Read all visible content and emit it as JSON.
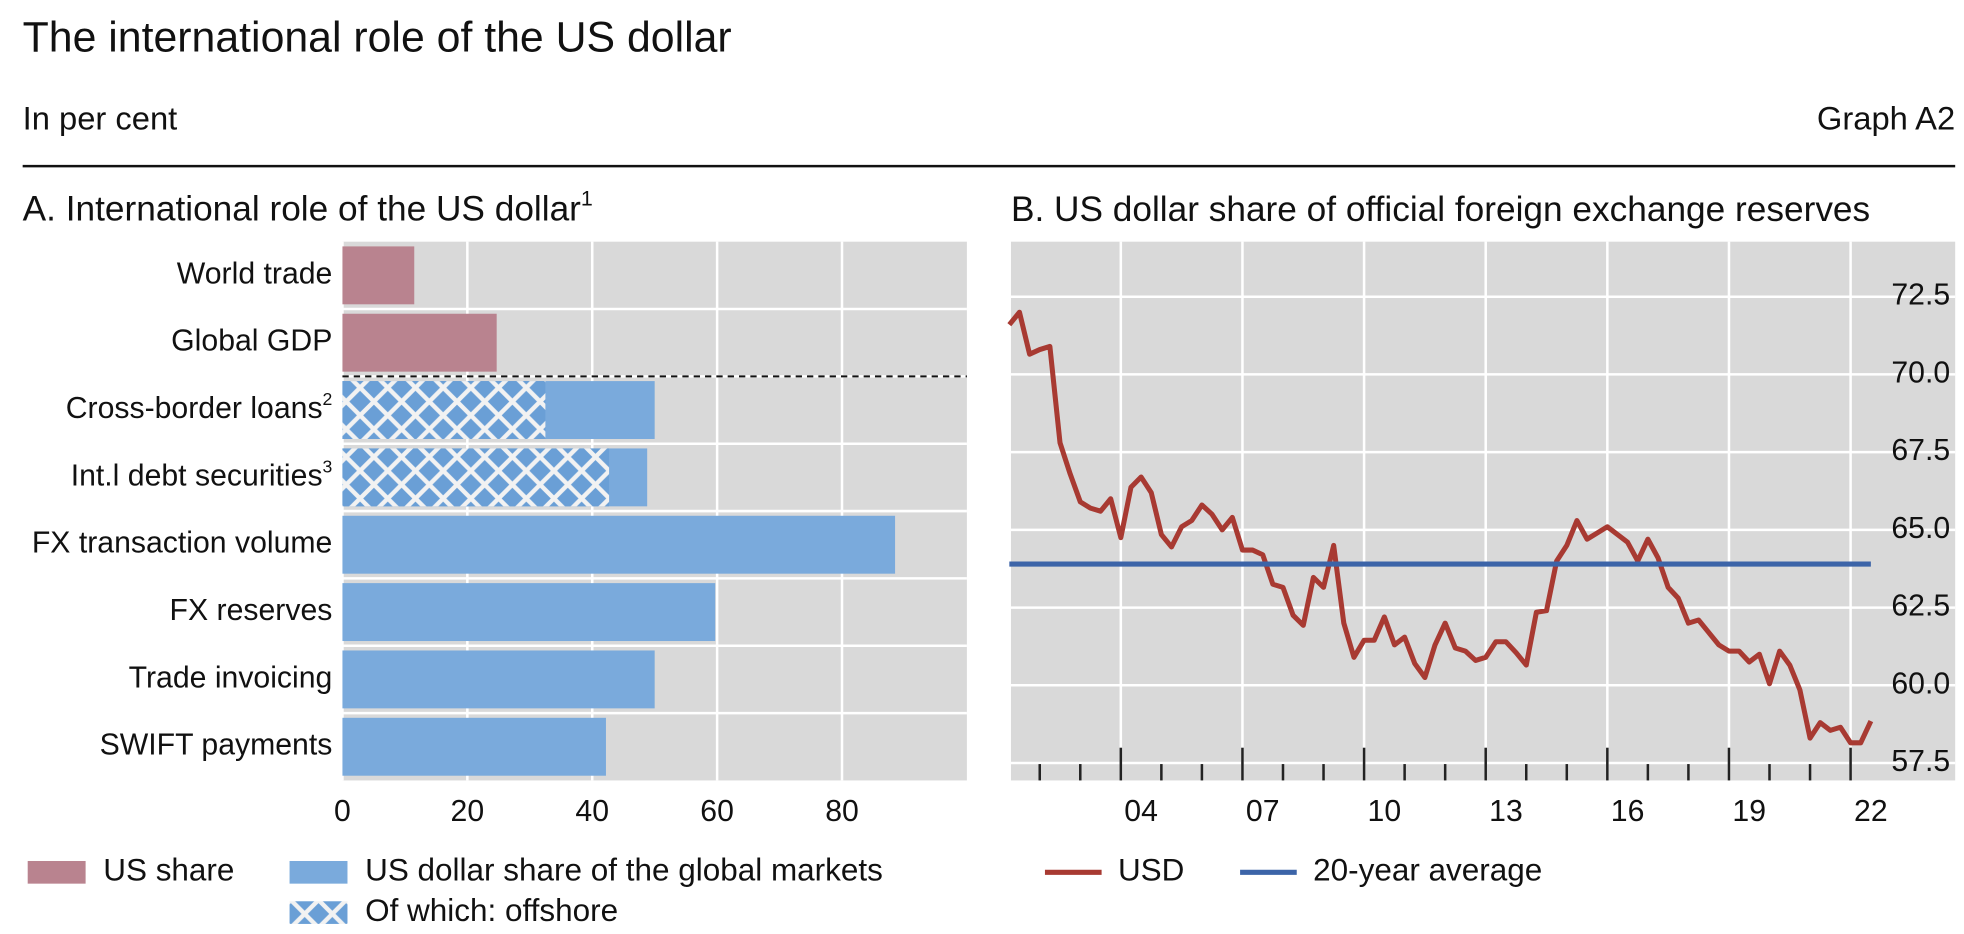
{
  "header": {
    "title": "The international role of the US dollar",
    "subtitle": "In per cent",
    "graph_id": "Graph A2"
  },
  "chart_data": [
    {
      "type": "bar",
      "orientation": "horizontal",
      "title": "A. International role of the US dollar",
      "title_note": "1",
      "categories": [
        "World trade",
        "Global GDP",
        "Cross-border loans",
        "Int.l debt securities",
        "FX transaction volume",
        "FX reserves",
        "Trade invoicing",
        "SWIFT payments"
      ],
      "category_notes": [
        null,
        null,
        "2",
        "3",
        null,
        null,
        null,
        null
      ],
      "series": [
        {
          "name": "US share",
          "color": "#b9838f",
          "values": [
            11.5,
            24.7,
            null,
            null,
            null,
            null,
            null,
            null
          ]
        },
        {
          "name": "US dollar share of the global markets",
          "color": "#7aaadc",
          "values": [
            null,
            null,
            50,
            48.8,
            88.5,
            59.7,
            50,
            42.2
          ]
        },
        {
          "name": "Of which: offshore",
          "color": "#6a9fd6",
          "pattern": "crosshatch",
          "values": [
            null,
            null,
            32.5,
            42.7,
            null,
            null,
            null,
            null
          ]
        }
      ],
      "xlim": [
        0,
        100
      ],
      "xticks": [
        0,
        20,
        40,
        60,
        80
      ],
      "grid": true,
      "legend": "bottom"
    },
    {
      "type": "line",
      "title": "B. US dollar share of official foreign exchange reserves",
      "series": [
        {
          "name": "USD",
          "color": "#a83a32",
          "x": [
            2001.25,
            2001.5,
            2001.75,
            2002,
            2002.25,
            2002.5,
            2002.75,
            2003,
            2003.25,
            2003.5,
            2003.75,
            2004,
            2004.25,
            2004.5,
            2004.75,
            2005,
            2005.25,
            2005.5,
            2005.75,
            2006,
            2006.25,
            2006.5,
            2006.75,
            2007,
            2007.25,
            2007.5,
            2007.75,
            2008,
            2008.25,
            2008.5,
            2008.75,
            2009,
            2009.25,
            2009.5,
            2009.75,
            2010,
            2010.25,
            2010.5,
            2010.75,
            2011,
            2011.25,
            2011.5,
            2011.75,
            2012,
            2012.25,
            2012.5,
            2012.75,
            2013,
            2013.25,
            2013.5,
            2013.75,
            2014,
            2014.25,
            2014.5,
            2014.75,
            2015,
            2015.25,
            2015.5,
            2015.75,
            2016,
            2016.25,
            2016.5,
            2016.75,
            2017,
            2017.25,
            2017.5,
            2017.75,
            2018,
            2018.25,
            2018.5,
            2018.75,
            2019,
            2019.25,
            2019.5,
            2019.75,
            2020,
            2020.25,
            2020.5,
            2020.75,
            2021,
            2021.25,
            2021.5,
            2021.75,
            2022,
            2022.25,
            2022.5
          ],
          "values": [
            71.6,
            72.0,
            70.65,
            70.8,
            70.9,
            67.8,
            66.8,
            65.9,
            65.7,
            65.6,
            66.0,
            64.75,
            66.37,
            66.7,
            66.2,
            64.85,
            64.45,
            65.1,
            65.3,
            65.8,
            65.5,
            65.0,
            65.4,
            64.35,
            64.35,
            64.2,
            63.25,
            63.15,
            62.25,
            61.93,
            63.47,
            63.15,
            64.5,
            62.0,
            60.9,
            61.45,
            61.45,
            62.2,
            61.3,
            61.55,
            60.7,
            60.25,
            61.3,
            62.0,
            61.2,
            61.1,
            60.8,
            60.9,
            61.4,
            61.4,
            61.05,
            60.65,
            62.35,
            62.4,
            64.0,
            64.5,
            65.3,
            64.7,
            64.9,
            65.1,
            64.85,
            64.6,
            64.0,
            64.7,
            64.1,
            63.15,
            62.8,
            62.0,
            62.1,
            61.7,
            61.3,
            61.1,
            61.1,
            60.75,
            61.0,
            60.05,
            61.1,
            60.65,
            59.85,
            58.3,
            58.8,
            58.55,
            58.65,
            58.15,
            58.15,
            58.85
          ]
        },
        {
          "name": "20-year average",
          "color": "#3c64a8",
          "x": [
            2001.25,
            2022.5
          ],
          "values": [
            63.9,
            63.9
          ]
        }
      ],
      "xlim": [
        2001.29,
        2024.58
      ],
      "xticks": [
        {
          "value": 2004.5,
          "label": "04"
        },
        {
          "value": 2007.5,
          "label": "07"
        },
        {
          "value": 2010.5,
          "label": "10"
        },
        {
          "value": 2013.5,
          "label": "13"
        },
        {
          "value": 2016.5,
          "label": "16"
        },
        {
          "value": 2019.5,
          "label": "19"
        },
        {
          "value": 2022.5,
          "label": "22"
        }
      ],
      "major_xticks": [
        2004,
        2007,
        2010,
        2013,
        2016,
        2019,
        2022
      ],
      "minor_xticks": [
        2002,
        2003,
        2005,
        2006,
        2008,
        2009,
        2011,
        2012,
        2014,
        2015,
        2017,
        2018,
        2020,
        2021
      ],
      "ylim": [
        56.94,
        74.27
      ],
      "yticks": [
        57.5,
        {
          "value": 60,
          "label": "60.0"
        },
        62.5,
        {
          "value": 65,
          "label": "65.0"
        },
        67.5,
        {
          "value": 70,
          "label": "70.0"
        },
        72.5
      ],
      "yaxis_side": "right",
      "grid": true,
      "legend": "bottom"
    }
  ]
}
